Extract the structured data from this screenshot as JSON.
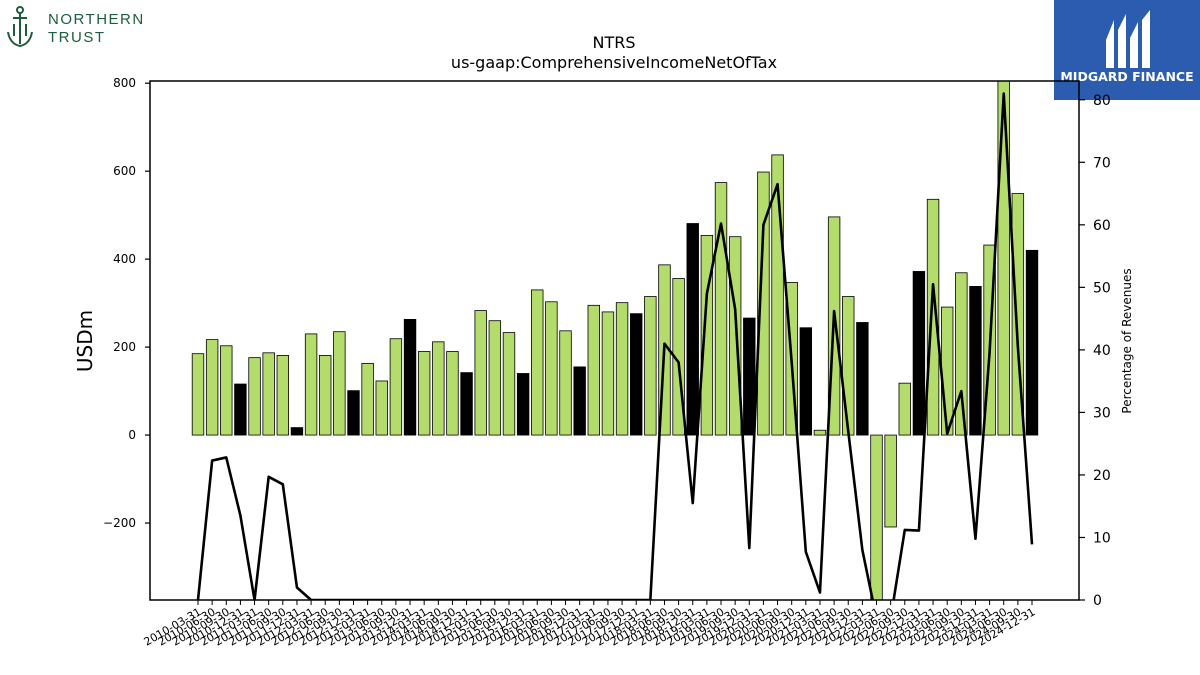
{
  "branding": {
    "left_logo_text_line1": "NORTHERN",
    "left_logo_text_line2": "TRUST",
    "left_logo_color": "#1d5c3e",
    "right_logo_text": "MIDGARD FINANCE",
    "right_logo_bg": "#2b5caf"
  },
  "chart_data": {
    "type": "bar",
    "title": "NTRS",
    "subtitle": "us-gaap:ComprehensiveIncomeNetOfTax",
    "ylabel": "USDm",
    "y2label": "Percentage of Revenues",
    "ylim": [
      -375,
      805
    ],
    "y2lim": [
      0,
      83
    ],
    "yticks": [
      -200,
      0,
      200,
      400,
      600,
      800
    ],
    "y2ticks": [
      0,
      10,
      20,
      30,
      40,
      50,
      60,
      70,
      80
    ],
    "bar_colors": {
      "annual": "#000000",
      "quarterly": "#b3dc6c"
    },
    "line_color": "#000000",
    "categories": [
      "2010-03-31",
      "2010-06-30",
      "2010-09-30",
      "2010-12-31",
      "2011-03-31",
      "2011-06-30",
      "2011-09-30",
      "2011-12-31",
      "2012-03-31",
      "2012-06-30",
      "2012-09-30",
      "2012-12-31",
      "2013-03-31",
      "2013-06-30",
      "2013-09-30",
      "2013-12-31",
      "2014-03-31",
      "2014-06-30",
      "2014-09-30",
      "2014-12-31",
      "2015-03-31",
      "2015-06-30",
      "2015-09-30",
      "2015-12-31",
      "2016-03-31",
      "2016-06-30",
      "2016-09-30",
      "2016-12-31",
      "2017-03-31",
      "2017-06-30",
      "2017-09-30",
      "2017-12-31",
      "2018-03-31",
      "2018-06-30",
      "2018-09-30",
      "2018-12-31",
      "2019-03-31",
      "2019-06-30",
      "2019-09-30",
      "2019-12-31",
      "2020-03-31",
      "2020-06-30",
      "2020-09-30",
      "2020-12-31",
      "2021-03-31",
      "2021-06-30",
      "2021-09-30",
      "2021-12-31",
      "2022-03-31",
      "2022-06-30",
      "2022-09-30",
      "2022-12-31",
      "2023-03-31",
      "2023-06-30",
      "2023-09-30",
      "2023-12-31",
      "2024-03-31",
      "2024-06-30",
      "2024-09-30",
      "2024-12-31"
    ],
    "values": [
      185,
      217,
      203,
      116,
      176,
      187,
      181,
      17,
      230,
      181,
      235,
      101,
      163,
      123,
      219,
      263,
      190,
      212,
      190,
      142,
      283,
      260,
      233,
      140,
      330,
      303,
      237,
      155,
      295,
      280,
      301,
      276,
      315,
      387,
      356,
      481,
      454,
      574,
      451,
      266,
      598,
      637,
      347,
      244,
      11,
      496,
      315,
      256,
      -378,
      -209,
      118,
      372,
      536,
      291,
      369,
      338,
      432,
      820,
      549,
      420
    ],
    "bar_type": [
      "q",
      "q",
      "q",
      "a",
      "q",
      "q",
      "q",
      "a",
      "q",
      "q",
      "q",
      "a",
      "q",
      "q",
      "q",
      "a",
      "q",
      "q",
      "q",
      "a",
      "q",
      "q",
      "q",
      "a",
      "q",
      "q",
      "q",
      "a",
      "q",
      "q",
      "q",
      "a",
      "q",
      "q",
      "q",
      "a",
      "q",
      "q",
      "q",
      "a",
      "q",
      "q",
      "q",
      "a",
      "q",
      "q",
      "q",
      "a",
      "q",
      "q",
      "q",
      "a",
      "q",
      "q",
      "q",
      "a",
      "q",
      "q",
      "q",
      "a"
    ],
    "pct_of_revenues": [
      0,
      22.3,
      22.8,
      13.5,
      0,
      19.7,
      18.5,
      2,
      0,
      0,
      0,
      0,
      0,
      0,
      0,
      0,
      0,
      0,
      0,
      0,
      0,
      0,
      0,
      0,
      0,
      0,
      0,
      0,
      0,
      0,
      0,
      0,
      0,
      41,
      38,
      15.5,
      49,
      60.2,
      46.5,
      8.3,
      60,
      66.5,
      38,
      7.7,
      1.2,
      46.2,
      27,
      8,
      -3,
      -3,
      11.2,
      11.1,
      50.5,
      26.6,
      33.4,
      9.8,
      39.6,
      81,
      40.5,
      8.9
    ]
  }
}
